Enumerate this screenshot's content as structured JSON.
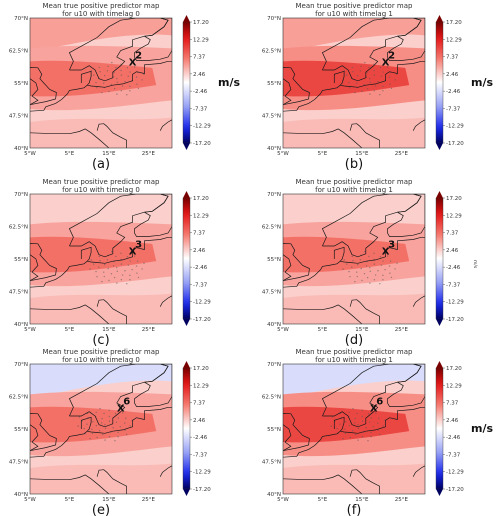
{
  "chart_data": [
    {
      "type": "heatmap",
      "panel": "(a)",
      "title_line1": "Mean true positive predictor map",
      "title_line2": "for u10 with timelag 0",
      "colorbar_label": "m/s",
      "annotation_number": "2",
      "annotation_mark": "X",
      "annotation_lon": 21,
      "annotation_lat": 60,
      "dominant_value": 7.37,
      "background_value": 2.46,
      "north_value": 4.9
    },
    {
      "type": "heatmap",
      "panel": "(b)",
      "title_line1": "Mean true positive predictor map",
      "title_line2": "for u10 with timelag 1",
      "colorbar_label": "m/s",
      "annotation_number": "2",
      "annotation_mark": "X",
      "annotation_lon": 21,
      "annotation_lat": 60,
      "dominant_value": 9.8,
      "background_value": 2.46,
      "north_value": 4.9
    },
    {
      "type": "heatmap",
      "panel": "(c)",
      "title_line1": "Mean true positive predictor map",
      "title_line2": "for u10 with timelag 0",
      "colorbar_label": "",
      "annotation_number": "3",
      "annotation_mark": "X",
      "annotation_lon": 21,
      "annotation_lat": 57,
      "dominant_value": 7.37,
      "background_value": 2.46,
      "north_value": 2.46
    },
    {
      "type": "heatmap",
      "panel": "(d)",
      "title_line1": "Mean true positive predictor map",
      "title_line2": "for u10 with timelag 1",
      "colorbar_label": "m/s",
      "annotation_number": "3",
      "annotation_mark": "X",
      "annotation_lon": 21,
      "annotation_lat": 57,
      "dominant_value": 7.37,
      "background_value": 2.46,
      "north_value": 2.46
    },
    {
      "type": "heatmap",
      "panel": "(e)",
      "title_line1": "Mean true positive predictor map",
      "title_line2": "for u10 with timelag 0",
      "colorbar_label": "",
      "annotation_number": "6",
      "annotation_mark": "X",
      "annotation_lon": 18,
      "annotation_lat": 60,
      "dominant_value": 7.37,
      "background_value": 2.46,
      "north_value": -2.46
    },
    {
      "type": "heatmap",
      "panel": "(f)",
      "title_line1": "Mean true positive predictor map",
      "title_line2": "for u10 with timelag 1",
      "colorbar_label": "m/s",
      "annotation_number": "6",
      "annotation_mark": "X",
      "annotation_lon": 18,
      "annotation_lat": 60,
      "dominant_value": 9.8,
      "background_value": 2.46,
      "north_value": -2.46
    }
  ],
  "axes": {
    "x_ticks": [
      "5°W",
      "5°E",
      "15°E",
      "25°E"
    ],
    "x_tick_values": [
      -5,
      5,
      15,
      25
    ],
    "y_ticks": [
      "70°N",
      "62.5°N",
      "55°N",
      "47.5°N",
      "40°N"
    ],
    "y_tick_values": [
      70,
      62.5,
      55,
      47.5,
      40
    ],
    "xlim": [
      -5,
      31
    ],
    "ylim": [
      40,
      70
    ]
  },
  "colorbar": {
    "ticks": [
      "17.20",
      "12.29",
      "7.37",
      "2.46",
      "-2.46",
      "-7.37",
      "-12.29",
      "-17.20"
    ],
    "tick_values": [
      17.2,
      12.29,
      7.37,
      2.46,
      -2.46,
      -7.37,
      -12.29,
      -17.2
    ],
    "range": [
      -17.2,
      17.2
    ],
    "colormap": "seismic (blue-white-red)"
  },
  "colors": {
    "coast": "#1a1a1a",
    "dots": "#555555"
  }
}
